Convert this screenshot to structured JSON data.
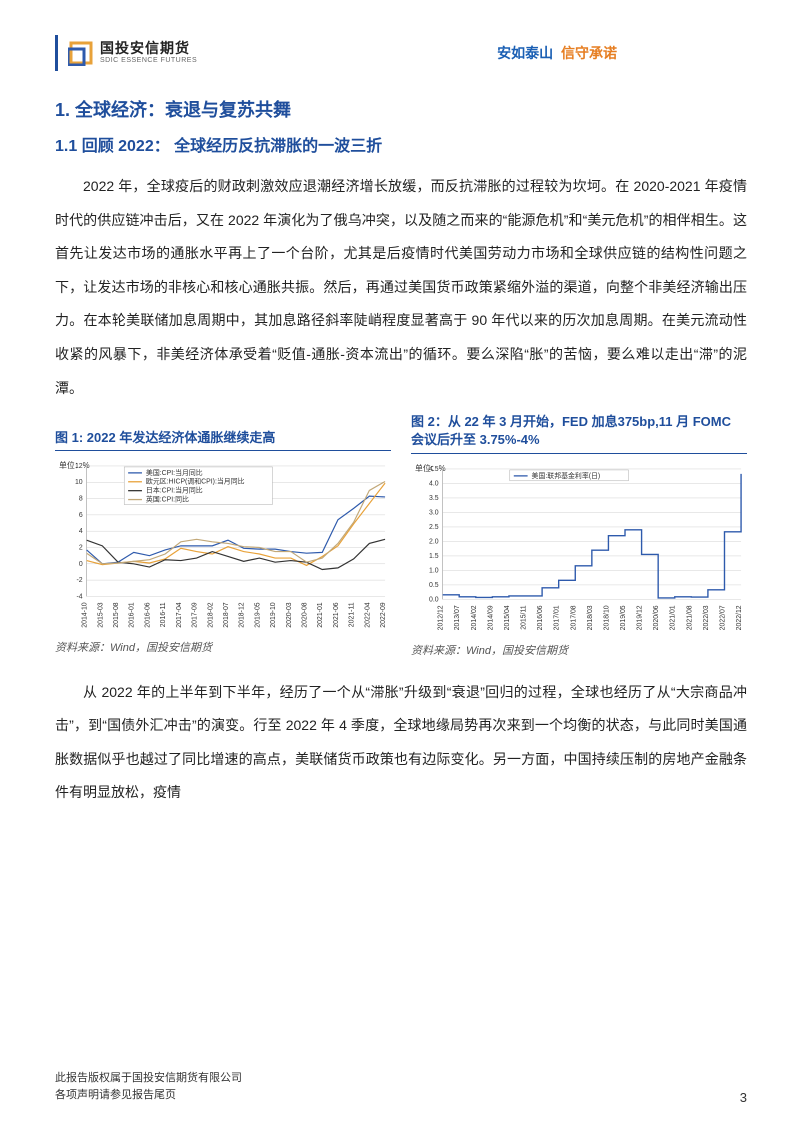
{
  "header": {
    "logo_cn": "国投安信期货",
    "logo_en": "SDIC ESSENCE FUTURES",
    "slogan_blue": "安如泰山",
    "slogan_orange": "信守承诺"
  },
  "h1": "1. 全球经济：衰退与复苏共舞",
  "h2": "1.1 回顾 2022： 全球经历反抗滞胀的一波三折",
  "para1": "2022 年，全球疫后的财政刺激效应退潮经济增长放缓，而反抗滞胀的过程较为坎坷。在 2020-2021 年疫情时代的供应链冲击后，又在 2022 年演化为了俄乌冲突，以及随之而来的“能源危机”和“美元危机”的相伴相生。这首先让发达市场的通胀水平再上了一个台阶，尤其是后疫情时代美国劳动力市场和全球供应链的结构性问题之下，让发达市场的非核心和核心通胀共振。然后，再通过美国货币政策紧缩外溢的渠道，向整个非美经济输出压力。在本轮美联储加息周期中，其加息路径斜率陡峭程度显著高于 90 年代以来的历次加息周期。在美元流动性收紧的风暴下，非美经济体承受着“贬值-通胀-资本流出”的循环。要么深陷“胀”的苦恼，要么难以走出“滞”的泥潭。",
  "fig1": {
    "title": "图 1: 2022 年发达经济体通胀继续走高",
    "unit": "单位：%",
    "source": "资料来源：Wind，国投安信期货",
    "legend": [
      "美国:CPI:当月同比",
      "欧元区:HICP(调和CPI):当月同比",
      "日本:CPI:当月同比",
      "英国:CPI:同比"
    ],
    "legend_colors": [
      "#2e5aac",
      "#e8a23a",
      "#333333",
      "#c2a878"
    ],
    "ylim": [
      -4,
      12
    ],
    "yticks": [
      -4,
      -2,
      0,
      2,
      4,
      6,
      8,
      10,
      12
    ],
    "xticks": [
      "2014-10",
      "2015-03",
      "2015-08",
      "2016-01",
      "2016-06",
      "2016-11",
      "2017-04",
      "2017-09",
      "2018-02",
      "2018-07",
      "2018-12",
      "2019-05",
      "2019-10",
      "2020-03",
      "2020-08",
      "2021-01",
      "2021-06",
      "2021-11",
      "2022-04",
      "2022-09"
    ],
    "series": {
      "美国": {
        "color": "#2e5aac",
        "values": [
          1.7,
          0,
          0.2,
          1.4,
          1,
          1.7,
          2.2,
          2.2,
          2.2,
          2.9,
          1.9,
          1.8,
          1.8,
          1.5,
          1.3,
          1.4,
          5.4,
          6.8,
          8.3,
          8.2
        ]
      },
      "欧元区": {
        "color": "#e8a23a",
        "values": [
          0.4,
          -0.1,
          0.1,
          0.3,
          0.1,
          0.6,
          1.9,
          1.5,
          1.2,
          2.1,
          1.5,
          1.2,
          0.7,
          0.7,
          -0.2,
          0.9,
          2.2,
          4.9,
          7.4,
          9.9
        ]
      },
      "日本": {
        "color": "#333333",
        "values": [
          2.9,
          2.2,
          0.2,
          0,
          -0.4,
          0.5,
          0.4,
          0.7,
          1.5,
          0.9,
          0.3,
          0.7,
          0.2,
          0.4,
          0.2,
          -0.7,
          -0.5,
          0.6,
          2.5,
          3
        ]
      },
      "英国": {
        "color": "#c2a878",
        "values": [
          1.3,
          0,
          0.1,
          0.3,
          0.5,
          1.2,
          2.7,
          3,
          2.7,
          2.5,
          2.1,
          2,
          1.5,
          1.5,
          0.2,
          0.7,
          2.5,
          5.1,
          9,
          10.1
        ]
      }
    },
    "grid_color": "#d0d0d0",
    "background": "#ffffff"
  },
  "fig2": {
    "title": "图 2：从 22 年 3 月开始，FED 加息375bp,11 月 FOMC 会议后升至 3.75%-4%",
    "unit": "单位：%",
    "source": "资料来源：Wind，国投安信期货",
    "legend": [
      "美国:联邦基金利率(日)"
    ],
    "legend_colors": [
      "#2e5aac"
    ],
    "ylim": [
      0,
      4.5
    ],
    "yticks": [
      0.0,
      0.5,
      1.0,
      1.5,
      2.0,
      2.5,
      3.0,
      3.5,
      4.0,
      4.5
    ],
    "xticks": [
      "2012/12",
      "2013/07",
      "2014/02",
      "2014/09",
      "2015/04",
      "2015/11",
      "2016/06",
      "2017/01",
      "2017/08",
      "2018/03",
      "2018/10",
      "2019/05",
      "2019/12",
      "2020/06",
      "2021/01",
      "2021/08",
      "2022/03",
      "2022/07",
      "2022/12"
    ],
    "values": [
      0.16,
      0.09,
      0.07,
      0.09,
      0.12,
      0.12,
      0.4,
      0.66,
      1.16,
      1.7,
      2.2,
      2.4,
      1.55,
      0.05,
      0.09,
      0.08,
      0.33,
      2.33,
      4.33
    ],
    "color": "#2e5aac",
    "grid_color": "#d0d0d0",
    "background": "#ffffff"
  },
  "para2": "从 2022 年的上半年到下半年，经历了一个从“滞胀”升级到“衰退”回归的过程，全球也经历了从“大宗商品冲击”，到“国债外汇冲击”的演变。行至 2022 年 4 季度，全球地缘局势再次来到一个均衡的状态，与此同时美国通胀数据似乎也越过了同比增速的高点，美联储货币政策也有边际变化。另一方面，中国持续压制的房地产金融条件有明显放松，疫情",
  "footer": {
    "line1": "此报告版权属于国投安信期货有限公司",
    "line2": "各项声明请参见报告尾页",
    "page": "3"
  },
  "colors": {
    "accent": "#1f4e9c",
    "orange": "#e8a23a"
  }
}
